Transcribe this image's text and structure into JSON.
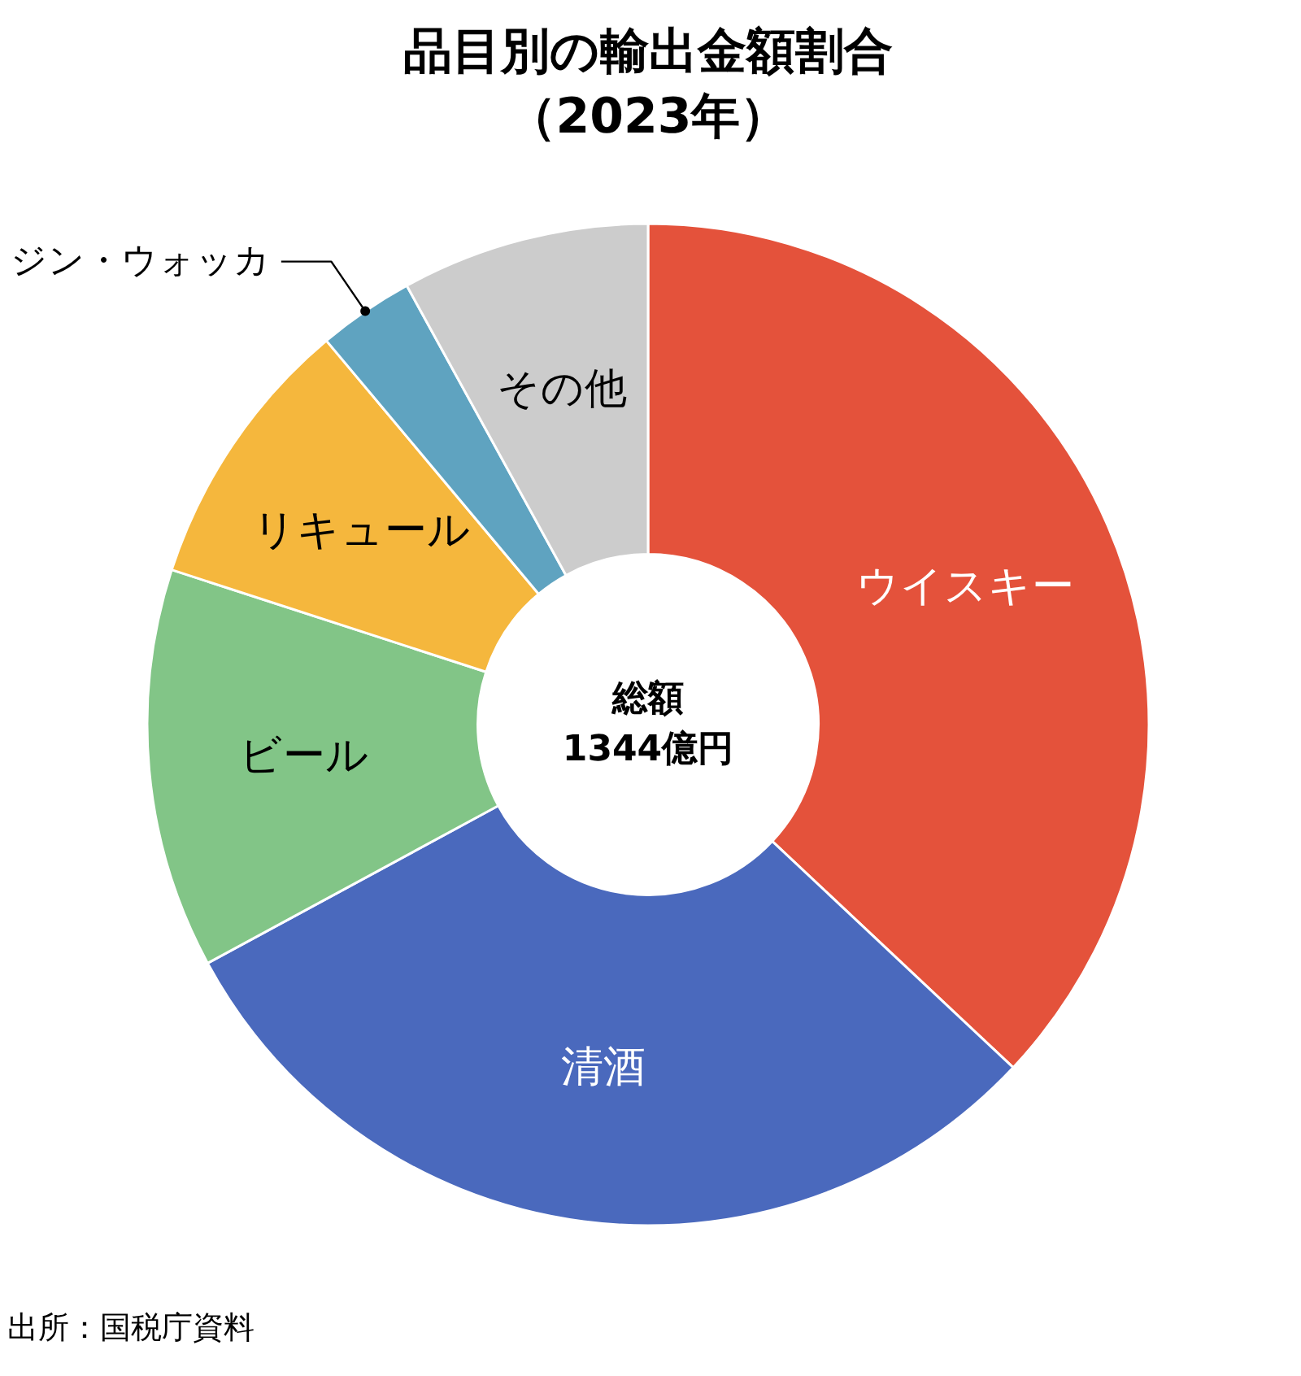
{
  "chart_data": {
    "type": "donut",
    "title": "品目別の輸出金額割合",
    "subtitle": "（2023年）",
    "categories": [
      "ウイスキー",
      "清酒",
      "ビール",
      "リキュール",
      "ジン・ウォッカ",
      "その他"
    ],
    "values": [
      37.0,
      30.1,
      12.9,
      8.9,
      3.1,
      8.0
    ],
    "colors": [
      "#e4523b",
      "#4a69bd",
      "#82c587",
      "#f5b73d",
      "#5fa3c0",
      "#cccccc"
    ],
    "annotations": [
      "総額\n1344億円",
      "出所：国税庁資料"
    ]
  }
}
